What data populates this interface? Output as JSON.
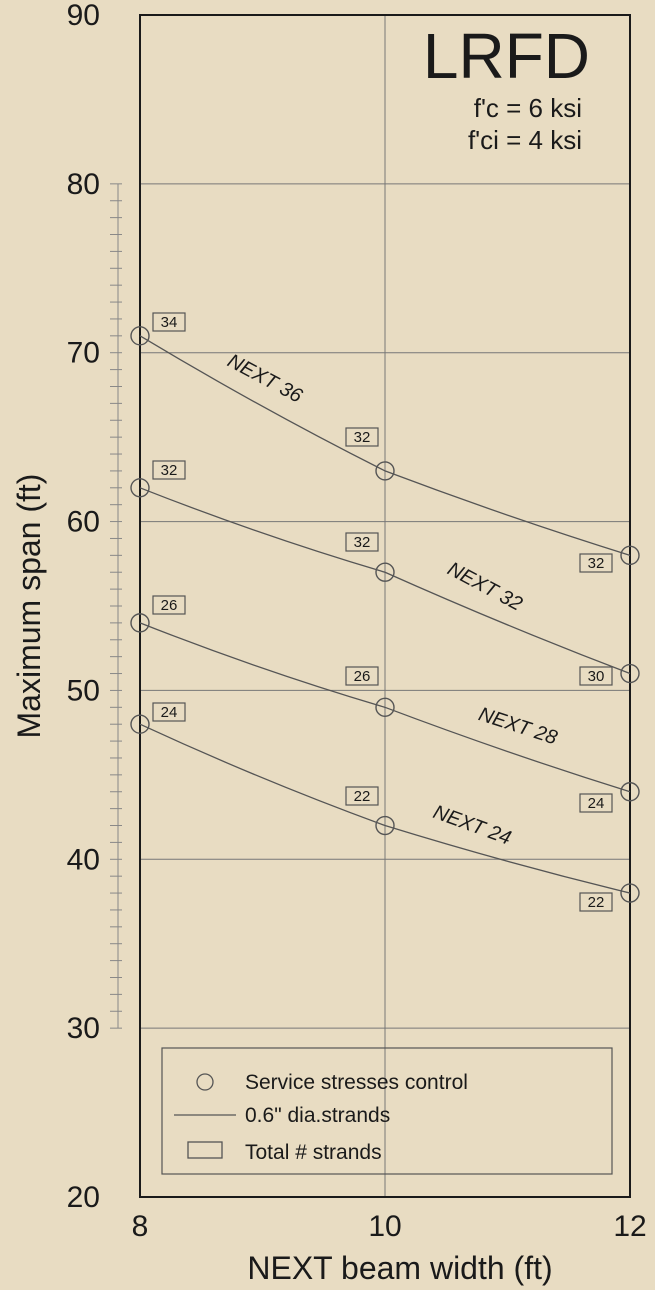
{
  "chart_data": {
    "type": "line",
    "title": "LRFD",
    "subtitle": [
      "f'c = 6 ksi",
      "f'ci = 4 ksi"
    ],
    "xlabel": "NEXT beam width (ft)",
    "ylabel": "Maximum span (ft)",
    "xlim": [
      8,
      12
    ],
    "ylim": [
      20,
      90
    ],
    "xticks": [
      "8",
      "10",
      "12"
    ],
    "yticks": [
      "20",
      "30",
      "40",
      "50",
      "60",
      "70",
      "80",
      "90"
    ],
    "grid": true,
    "x": [
      8,
      10,
      12
    ],
    "series": [
      {
        "name": "NEXT 36",
        "values": [
          71,
          63,
          58
        ],
        "strands": [
          "34",
          "32",
          "32"
        ]
      },
      {
        "name": "NEXT 32",
        "values": [
          62,
          57,
          51
        ],
        "strands": [
          "32",
          "32",
          "30"
        ]
      },
      {
        "name": "NEXT 28",
        "values": [
          54,
          49,
          44
        ],
        "strands": [
          "26",
          "26",
          "24"
        ]
      },
      {
        "name": "NEXT 24",
        "values": [
          48,
          42,
          38
        ],
        "strands": [
          "24",
          "22",
          "22"
        ]
      }
    ],
    "legend": {
      "placement": "bottom",
      "entries": [
        "Service stresses control",
        "0.6\" dia.strands",
        "Total # strands"
      ]
    },
    "colors": {
      "background": "#e8dcc2",
      "line": "#555555",
      "text": "#1a1a1a"
    }
  }
}
